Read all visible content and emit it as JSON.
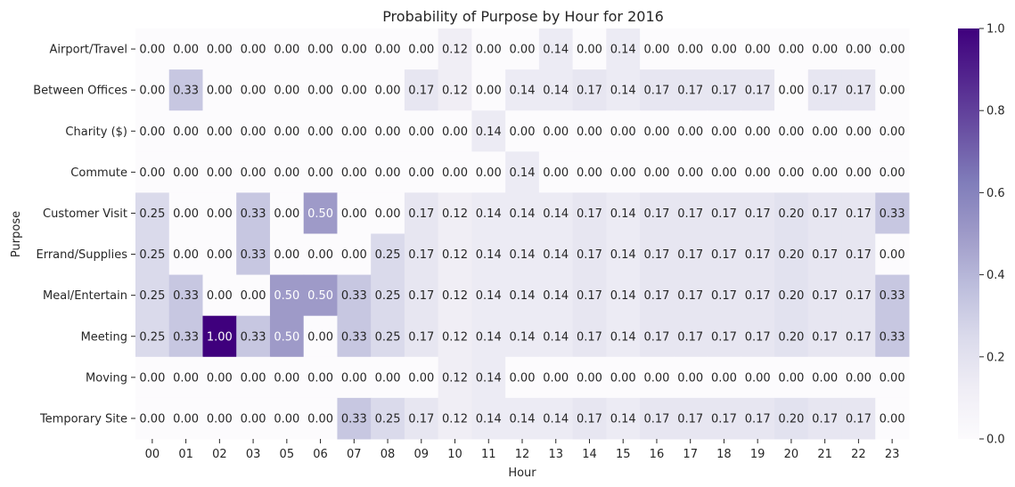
{
  "chart_data": {
    "type": "heatmap",
    "title": "Probability of Purpose by Hour for 2016",
    "xlabel": "Hour",
    "ylabel": "Purpose",
    "x": [
      "00",
      "01",
      "02",
      "03",
      "05",
      "06",
      "07",
      "08",
      "09",
      "10",
      "11",
      "12",
      "13",
      "14",
      "15",
      "16",
      "17",
      "18",
      "19",
      "20",
      "21",
      "22",
      "23"
    ],
    "y": [
      "Airport/Travel",
      "Between Offices",
      "Charity ($)",
      "Commute",
      "Customer Visit",
      "Errand/Supplies",
      "Meal/Entertain",
      "Meeting",
      "Moving",
      "Temporary Site"
    ],
    "values": [
      [
        0.0,
        0.0,
        0.0,
        0.0,
        0.0,
        0.0,
        0.0,
        0.0,
        0.0,
        0.12,
        0.0,
        0.0,
        0.14,
        0.0,
        0.14,
        0.0,
        0.0,
        0.0,
        0.0,
        0.0,
        0.0,
        0.0,
        0.0
      ],
      [
        0.0,
        0.33,
        0.0,
        0.0,
        0.0,
        0.0,
        0.0,
        0.0,
        0.17,
        0.12,
        0.0,
        0.14,
        0.14,
        0.17,
        0.14,
        0.17,
        0.17,
        0.17,
        0.17,
        0.0,
        0.17,
        0.17,
        0.0
      ],
      [
        0.0,
        0.0,
        0.0,
        0.0,
        0.0,
        0.0,
        0.0,
        0.0,
        0.0,
        0.0,
        0.14,
        0.0,
        0.0,
        0.0,
        0.0,
        0.0,
        0.0,
        0.0,
        0.0,
        0.0,
        0.0,
        0.0,
        0.0
      ],
      [
        0.0,
        0.0,
        0.0,
        0.0,
        0.0,
        0.0,
        0.0,
        0.0,
        0.0,
        0.0,
        0.0,
        0.14,
        0.0,
        0.0,
        0.0,
        0.0,
        0.0,
        0.0,
        0.0,
        0.0,
        0.0,
        0.0,
        0.0
      ],
      [
        0.25,
        0.0,
        0.0,
        0.33,
        0.0,
        0.5,
        0.0,
        0.0,
        0.17,
        0.12,
        0.14,
        0.14,
        0.14,
        0.17,
        0.14,
        0.17,
        0.17,
        0.17,
        0.17,
        0.2,
        0.17,
        0.17,
        0.33
      ],
      [
        0.25,
        0.0,
        0.0,
        0.33,
        0.0,
        0.0,
        0.0,
        0.25,
        0.17,
        0.12,
        0.14,
        0.14,
        0.14,
        0.17,
        0.14,
        0.17,
        0.17,
        0.17,
        0.17,
        0.2,
        0.17,
        0.17,
        0.0
      ],
      [
        0.25,
        0.33,
        0.0,
        0.0,
        0.5,
        0.5,
        0.33,
        0.25,
        0.17,
        0.12,
        0.14,
        0.14,
        0.14,
        0.17,
        0.14,
        0.17,
        0.17,
        0.17,
        0.17,
        0.2,
        0.17,
        0.17,
        0.33
      ],
      [
        0.25,
        0.33,
        1.0,
        0.33,
        0.5,
        0.0,
        0.33,
        0.25,
        0.17,
        0.12,
        0.14,
        0.14,
        0.14,
        0.17,
        0.14,
        0.17,
        0.17,
        0.17,
        0.17,
        0.2,
        0.17,
        0.17,
        0.33
      ],
      [
        0.0,
        0.0,
        0.0,
        0.0,
        0.0,
        0.0,
        0.0,
        0.0,
        0.0,
        0.12,
        0.14,
        0.0,
        0.0,
        0.0,
        0.0,
        0.0,
        0.0,
        0.0,
        0.0,
        0.0,
        0.0,
        0.0,
        0.0
      ],
      [
        0.0,
        0.0,
        0.0,
        0.0,
        0.0,
        0.0,
        0.33,
        0.25,
        0.17,
        0.12,
        0.14,
        0.14,
        0.14,
        0.17,
        0.14,
        0.17,
        0.17,
        0.17,
        0.17,
        0.2,
        0.17,
        0.17,
        0.0
      ]
    ],
    "value_format": "0.00",
    "vmin": 0.0,
    "vmax": 1.0,
    "colormap": "Purples",
    "colorbar_ticks": [
      "0.0",
      "0.2",
      "0.4",
      "0.6",
      "0.8",
      "1.0"
    ],
    "colorbar_tick_values": [
      0.0,
      0.2,
      0.4,
      0.6,
      0.8,
      1.0
    ],
    "grid": false
  }
}
